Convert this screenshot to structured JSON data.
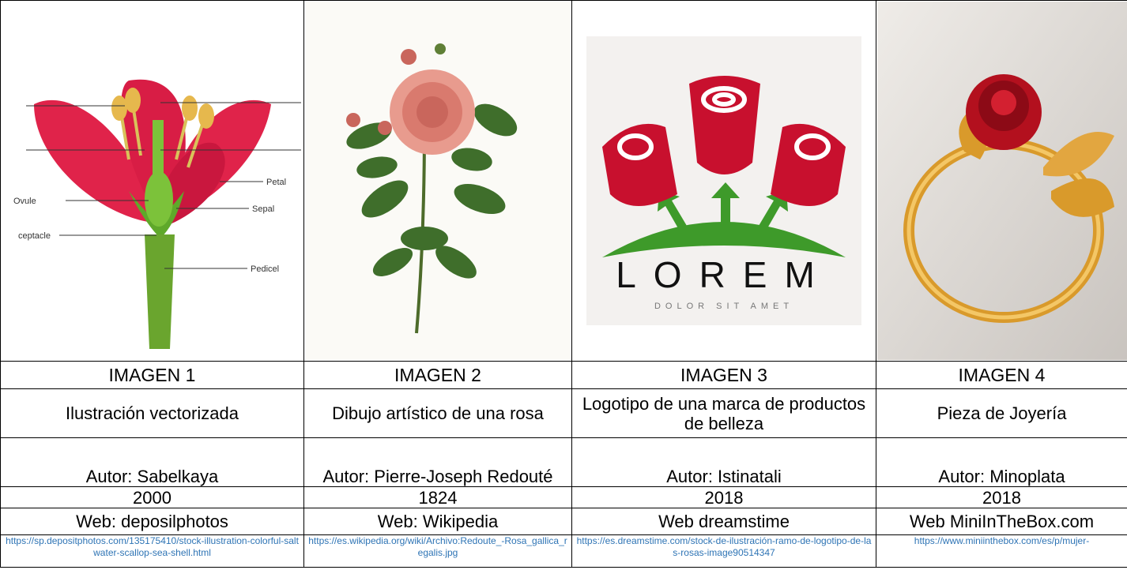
{
  "images": [
    {
      "labels": [
        "Ovule",
        "Petal",
        "Sepal",
        "ceptacle",
        "Pedicel"
      ]
    },
    {},
    {
      "logo_title": "LOREM",
      "logo_subtitle": "DOLOR SIT AMET"
    },
    {}
  ],
  "table": {
    "rows": [
      [
        "IMAGEN 1",
        "IMAGEN 2",
        "IMAGEN 3",
        "IMAGEN 4"
      ],
      [
        "Ilustración vectorizada",
        "Dibujo artístico de una rosa",
        "Logotipo de una marca de productos de belleza",
        "Pieza de Joyería"
      ],
      [
        "Autor: Sabelkaya",
        "Autor: Pierre-Joseph Redouté",
        "Autor:  Istinatali",
        "Autor: Minoplata"
      ],
      [
        "2000",
        "1824",
        "2018",
        "2018"
      ],
      [
        "Web: deposilphotos",
        "Web: Wikipedia",
        "Web dreamstime",
        "Web MiniInTheBox.com"
      ],
      [
        "https://sp.depositphotos.com/135175410/stock-illustration-colorful-saltwater-scallop-sea-shell.html",
        "https://es.wikipedia.org/wiki/Archivo:Redoute_-Rosa_gallica_regalis.jpg",
        "https://es.dreamstime.com/stock-de-ilustración-ramo-de-logotipo-de-las-rosas-image90514347",
        "https://www.miniinthebox.com/es/p/mujer-"
      ]
    ]
  }
}
